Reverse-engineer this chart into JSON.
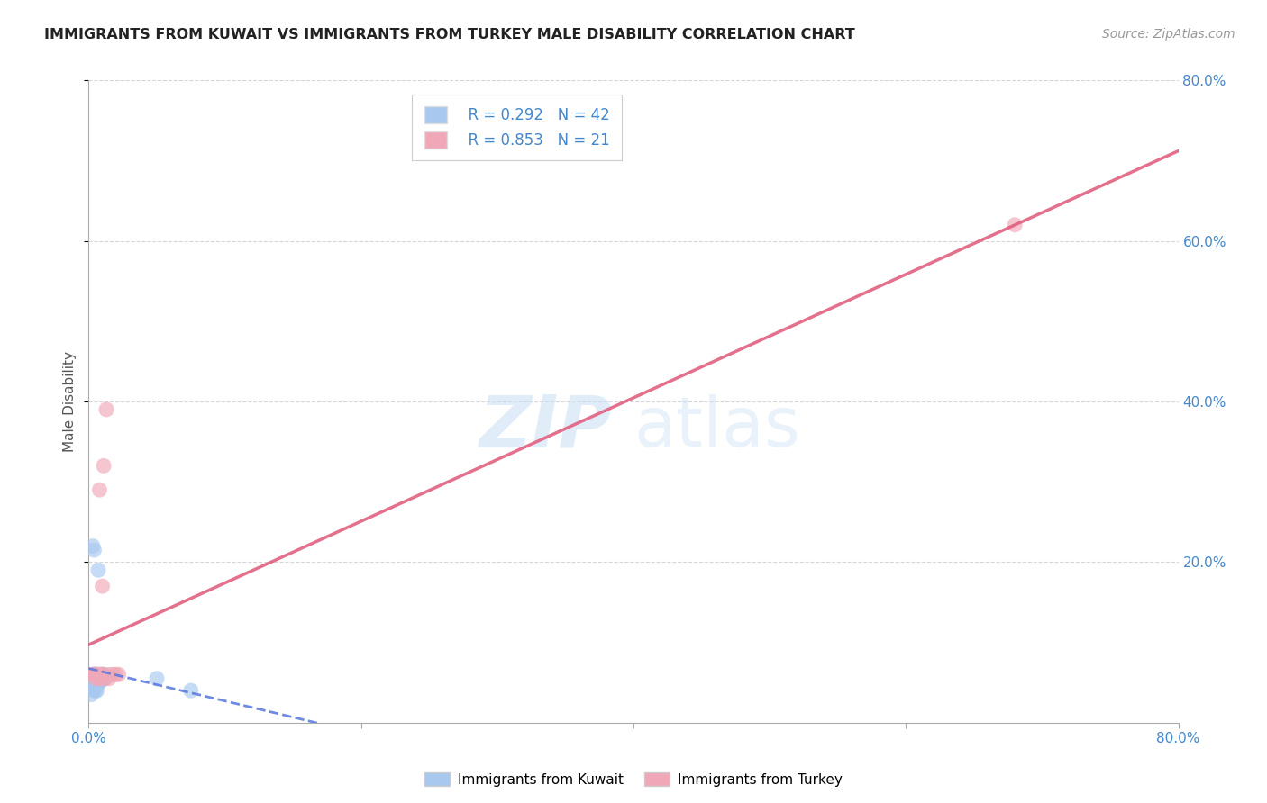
{
  "title": "IMMIGRANTS FROM KUWAIT VS IMMIGRANTS FROM TURKEY MALE DISABILITY CORRELATION CHART",
  "source": "Source: ZipAtlas.com",
  "ylabel": "Male Disability",
  "xlim": [
    0.0,
    0.8
  ],
  "ylim": [
    0.0,
    0.8
  ],
  "xtick_labels": [
    "0.0%",
    "",
    "",
    "",
    "80.0%"
  ],
  "xtick_vals": [
    0.0,
    0.2,
    0.4,
    0.6,
    0.8
  ],
  "ytick_labels": [
    "20.0%",
    "40.0%",
    "60.0%",
    "80.0%"
  ],
  "ytick_vals": [
    0.2,
    0.4,
    0.6,
    0.8
  ],
  "kuwait_color": "#a8c8f0",
  "turkey_color": "#f0a8b8",
  "kuwait_R": 0.292,
  "kuwait_N": 42,
  "turkey_R": 0.853,
  "turkey_N": 21,
  "kuwait_line_color": "#5577dd",
  "turkey_line_color": "#e06080",
  "watermark_zip_color": "#c8dff5",
  "watermark_atlas_color": "#c8dff5",
  "kuwait_scatter_x": [
    0.003,
    0.004,
    0.005,
    0.005,
    0.005,
    0.006,
    0.006,
    0.007,
    0.007,
    0.008,
    0.008,
    0.009,
    0.01,
    0.011,
    0.012,
    0.002,
    0.003,
    0.004,
    0.005,
    0.006,
    0.007,
    0.008,
    0.009,
    0.01,
    0.003,
    0.004,
    0.005,
    0.006,
    0.007,
    0.008,
    0.009,
    0.01,
    0.011,
    0.003,
    0.004,
    0.005,
    0.006,
    0.007,
    0.05,
    0.075,
    0.002,
    0.004
  ],
  "kuwait_scatter_y": [
    0.22,
    0.215,
    0.06,
    0.06,
    0.06,
    0.06,
    0.055,
    0.055,
    0.05,
    0.055,
    0.06,
    0.055,
    0.06,
    0.06,
    0.055,
    0.055,
    0.055,
    0.055,
    0.045,
    0.05,
    0.05,
    0.05,
    0.055,
    0.055,
    0.06,
    0.06,
    0.055,
    0.055,
    0.055,
    0.055,
    0.055,
    0.055,
    0.055,
    0.045,
    0.045,
    0.04,
    0.04,
    0.19,
    0.055,
    0.04,
    0.035,
    0.04
  ],
  "turkey_scatter_x": [
    0.003,
    0.004,
    0.005,
    0.005,
    0.006,
    0.007,
    0.008,
    0.008,
    0.009,
    0.01,
    0.01,
    0.01,
    0.011,
    0.012,
    0.013,
    0.015,
    0.015,
    0.018,
    0.02,
    0.022,
    0.68
  ],
  "turkey_scatter_y": [
    0.06,
    0.06,
    0.055,
    0.06,
    0.06,
    0.055,
    0.29,
    0.06,
    0.055,
    0.17,
    0.06,
    0.06,
    0.32,
    0.055,
    0.39,
    0.055,
    0.06,
    0.06,
    0.06,
    0.06,
    0.62
  ]
}
